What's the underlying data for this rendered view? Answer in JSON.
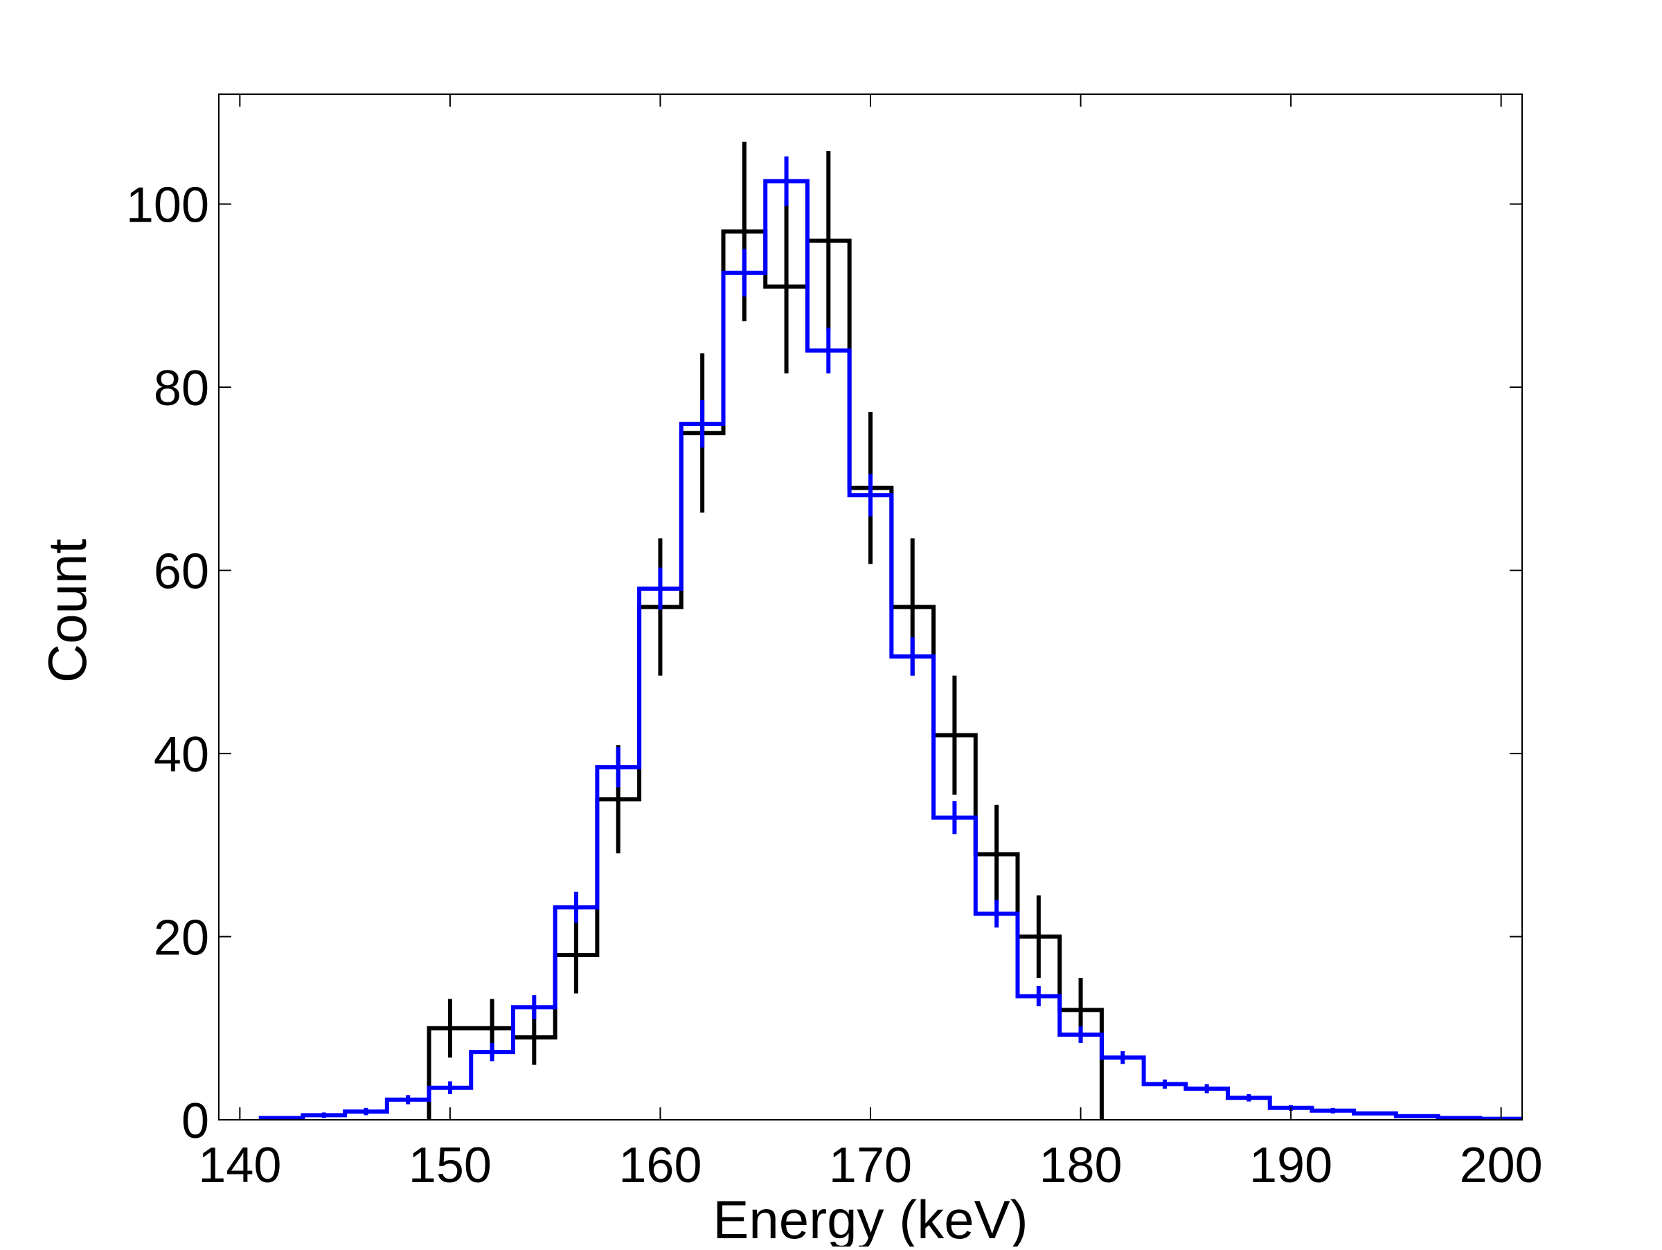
{
  "chart_data": {
    "type": "histogram",
    "title": "",
    "xlabel": "Energy (keV)",
    "ylabel": "Count",
    "xlim": [
      139,
      201
    ],
    "ylim": [
      0,
      112
    ],
    "xticks": [
      140,
      150,
      160,
      170,
      180,
      190,
      200
    ],
    "yticks": [
      0,
      20,
      40,
      60,
      80,
      100
    ],
    "grid": false,
    "legend": "none",
    "bin_width": 2,
    "series": [
      {
        "style": "step-with-errorbars",
        "color": "#000000",
        "bin_centers": [
          150,
          152,
          154,
          156,
          158,
          160,
          162,
          164,
          166,
          168,
          170,
          172,
          174,
          176,
          178,
          180
        ],
        "values": [
          10,
          10,
          9,
          18,
          35,
          56,
          75,
          97,
          91,
          96,
          69,
          56,
          42,
          29,
          20,
          12
        ],
        "errors": [
          3.2,
          3.2,
          3.0,
          4.2,
          5.9,
          7.5,
          8.7,
          9.8,
          9.5,
          9.8,
          8.3,
          7.5,
          6.5,
          5.4,
          4.5,
          3.5
        ]
      },
      {
        "style": "step-with-errorbars",
        "color": "#0000ff",
        "bin_centers": [
          142,
          144,
          146,
          148,
          150,
          152,
          154,
          156,
          158,
          160,
          162,
          164,
          166,
          168,
          170,
          172,
          174,
          176,
          178,
          180,
          182,
          184,
          186,
          188,
          190,
          192,
          194,
          196,
          198,
          200
        ],
        "values": [
          0.2,
          0.5,
          0.9,
          2.2,
          3.5,
          7.4,
          12.3,
          23.2,
          38.5,
          58.0,
          76.0,
          92.5,
          102.5,
          84.0,
          68.2,
          50.6,
          33.0,
          22.5,
          13.5,
          9.3,
          6.8,
          3.9,
          3.4,
          2.4,
          1.3,
          1.0,
          0.7,
          0.4,
          0.2,
          0.1
        ],
        "errors": [
          0.2,
          0.3,
          0.4,
          0.5,
          0.7,
          1.0,
          1.3,
          1.7,
          2.2,
          2.3,
          2.6,
          2.6,
          2.7,
          2.5,
          2.3,
          2.1,
          1.8,
          1.5,
          1.1,
          0.9,
          0.7,
          0.5,
          0.5,
          0.4,
          0.3,
          0.3,
          0.2,
          0.2,
          0.1,
          0.1
        ]
      }
    ]
  }
}
